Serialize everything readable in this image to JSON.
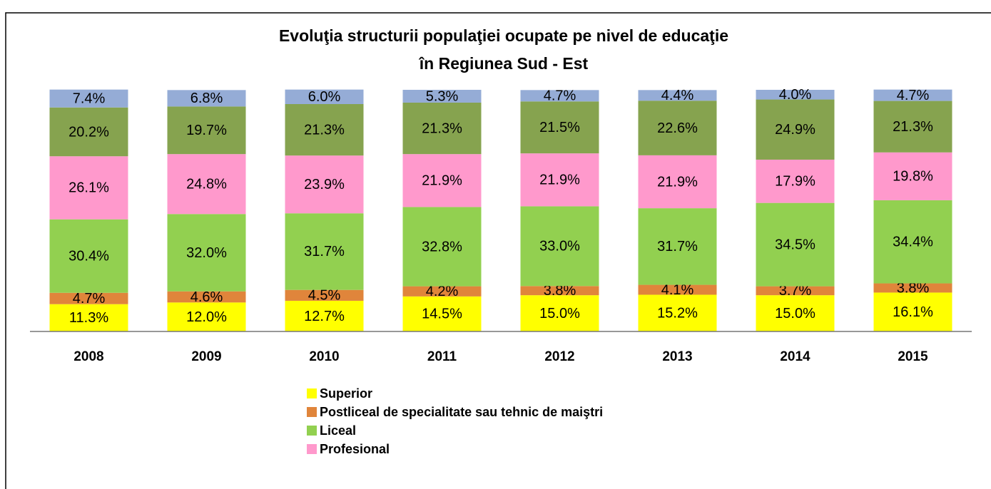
{
  "chart_data": {
    "type": "stacked_bar",
    "title": [
      "Evoluţia structurii populaţiei ocupate pe nivel de educaţie",
      "în Regiunea Sud - Est"
    ],
    "categories": [
      "2008",
      "2009",
      "2010",
      "2011",
      "2012",
      "2013",
      "2014",
      "2015"
    ],
    "ylim": [
      0,
      100
    ],
    "series": [
      {
        "name": "Superior",
        "color": "#ffff00",
        "values": [
          11.3,
          12.0,
          12.7,
          14.5,
          15.0,
          15.2,
          15.0,
          16.1
        ],
        "value_labels": [
          "11.3%",
          "12.0%",
          "12.7%",
          "14.5%",
          "15.0%",
          "15.2%",
          "15.0%",
          "16.1%"
        ]
      },
      {
        "name": "Postliceal de specialitate sau tehnic de maiştri",
        "color": "#e0853b",
        "values": [
          4.7,
          4.6,
          4.5,
          4.2,
          3.8,
          4.1,
          3.7,
          3.8
        ],
        "value_labels": [
          "4.7%",
          "4.6%",
          "4.5%",
          "4.2%",
          "3.8%",
          "4.1%",
          "3.7%",
          "3.8%"
        ]
      },
      {
        "name": "Liceal",
        "color": "#92d050",
        "values": [
          30.4,
          32.0,
          31.7,
          32.8,
          33.0,
          31.7,
          34.5,
          34.4
        ],
        "value_labels": [
          "30.4%",
          "32.0%",
          "31.7%",
          "32.8%",
          "33.0%",
          "31.7%",
          "34.5%",
          "34.4%"
        ]
      },
      {
        "name": "Profesional",
        "color": "#ff99cc",
        "values": [
          26.1,
          24.8,
          23.9,
          21.9,
          21.9,
          21.9,
          17.9,
          19.8
        ],
        "value_labels": [
          "26.1%",
          "24.8%",
          "23.9%",
          "21.9%",
          "21.9%",
          "21.9%",
          "17.9%",
          "19.8%"
        ]
      },
      {
        "color": "#86a34f",
        "values": [
          20.2,
          19.7,
          21.3,
          21.3,
          21.5,
          22.6,
          24.9,
          21.3
        ],
        "value_labels": [
          "20.2%",
          "19.7%",
          "21.3%",
          "21.3%",
          "21.5%",
          "22.6%",
          "24.9%",
          "21.3%"
        ]
      },
      {
        "color": "#95acd6",
        "values": [
          7.4,
          6.8,
          6.0,
          5.3,
          4.7,
          4.4,
          4.0,
          4.7
        ],
        "value_labels": [
          "7.4%",
          "6.8%",
          "6.0%",
          "5.3%",
          "4.7%",
          "4.4%",
          "4.0%",
          "4.7%"
        ]
      }
    ]
  }
}
